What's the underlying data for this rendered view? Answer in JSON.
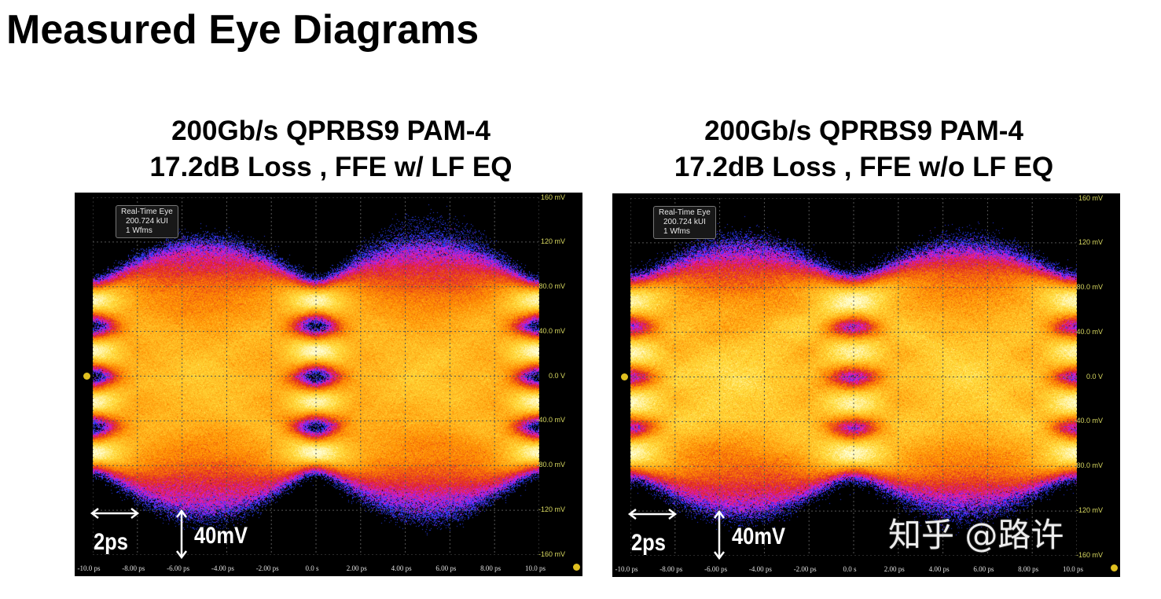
{
  "page_title": "Measured Eye Diagrams",
  "panels": [
    {
      "title_line1": "200Gb/s QPRBS9 PAM-4",
      "title_line2": "17.2dB Loss , FFE w/ LF EQ",
      "info": {
        "mode": "Real-Time Eye",
        "count": "200.724 kUI",
        "wfms": "1 Wfms"
      },
      "scale_time": "2ps",
      "scale_voltage": "40mV"
    },
    {
      "title_line1": "200Gb/s QPRBS9 PAM-4",
      "title_line2": "17.2dB Loss , FFE w/o LF EQ",
      "info": {
        "mode": "Real-Time Eye",
        "count": "200.724 kUI",
        "wfms": "1 Wfms"
      },
      "scale_time": "2ps",
      "scale_voltage": "40mV"
    }
  ],
  "y_axis_labels": [
    "160 mV",
    "120 mV",
    "80.0 mV",
    "40.0 mV",
    "0.0 V",
    "-40.0 mV",
    "-80.0 mV",
    "-120 mV",
    "-160 mV"
  ],
  "x_axis_labels": [
    "-10.0 ps",
    "-8.00 ps",
    "-6.00 ps",
    "-4.00 ps",
    "-2.00 ps",
    "0.0 s",
    "2.00 ps",
    "4.00 ps",
    "6.00 ps",
    "8.00 ps",
    "10.0 ps"
  ],
  "watermark": "知乎 @路许",
  "colors": {
    "background": "#000000",
    "axis_label": "#d8d860",
    "grid": "#555555"
  }
}
